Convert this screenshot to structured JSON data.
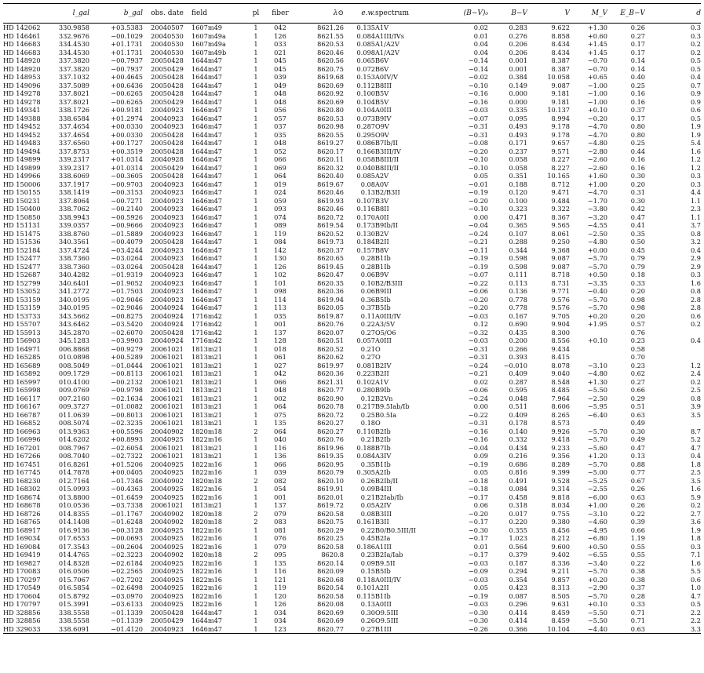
{
  "columns": [
    "",
    "l_gal",
    "b_gal",
    "obs. date",
    "field",
    "pl",
    "fiber",
    "λ⊙",
    "e.w.",
    "spectrum",
    "(B−V)₀",
    "B−V",
    "V",
    "M_V",
    "E_B−V",
    "d"
  ],
  "rows": [
    [
      "HD 142062",
      "330.9858",
      "+03.5383",
      "20040507",
      "1607m49",
      "1",
      "042",
      "8621.26",
      "0.135",
      "A1V",
      "0.02",
      "0.283",
      "9.622",
      "+1.30",
      "0.26",
      "0.3"
    ],
    [
      "HD 146461",
      "332.9676",
      "−00.1029",
      "20040530",
      "1607m49a",
      "1",
      "126",
      "8621.55",
      "0.084",
      "A1III/IVs",
      "0.01",
      "0.276",
      "8.858",
      "+0.60",
      "0.27",
      "0.3"
    ],
    [
      "HD 146683",
      "334.4530",
      "+01.1731",
      "20040530",
      "1607m49a",
      "1",
      "033",
      "8620.53",
      "0.085",
      "A1/A2V",
      "0.04",
      "0.206",
      "8.434",
      "+1.45",
      "0.17",
      "0.2"
    ],
    [
      "HD 146683",
      "334.4530",
      "+01.1731",
      "20040530",
      "1607m49b",
      "1",
      "021",
      "8620.46",
      "0.098",
      "A1/A2V",
      "0.04",
      "0.206",
      "8.434",
      "+1.45",
      "0.17",
      "0.2"
    ],
    [
      "HD 148920",
      "337.3820",
      "−00.7937",
      "20050428",
      "1644m47",
      "1",
      "045",
      "8620.56",
      "0.065",
      "B6V",
      "−0.14",
      "0.001",
      "8.387",
      "−0.70",
      "0.14",
      "0.5"
    ],
    [
      "HD 148920",
      "337.3820",
      "−00.7937",
      "20050429",
      "1644m47",
      "1",
      "045",
      "8620.75",
      "0.072",
      "B6V",
      "−0.14",
      "0.001",
      "8.387",
      "−0.70",
      "0.14",
      "0.5"
    ],
    [
      "HD 148953",
      "337.1032",
      "+00.4645",
      "20050428",
      "1644m47",
      "1",
      "039",
      "8619.68",
      "0.153",
      "A0IV/V",
      "−0.02",
      "0.384",
      "10.058",
      "+0.65",
      "0.40",
      "0.4"
    ],
    [
      "HD 149096",
      "337.5089",
      "+00.6436",
      "20050428",
      "1644m47",
      "1",
      "049",
      "8620.69",
      "0.112",
      "B8III",
      "−0.10",
      "0.149",
      "9.087",
      "−1.00",
      "0.25",
      "0.7"
    ],
    [
      "HD 149278",
      "337.8021",
      "−00.6265",
      "20050428",
      "1644m47",
      "1",
      "048",
      "8620.92",
      "0.100",
      "B5V",
      "−0.16",
      "0.000",
      "9.181",
      "−1.00",
      "0.16",
      "0.9"
    ],
    [
      "HD 149278",
      "337.8021",
      "−00.6265",
      "20050429",
      "1644m47",
      "1",
      "048",
      "8620.69",
      "0.104",
      "B5V",
      "−0.16",
      "0.000",
      "9.181",
      "−1.00",
      "0.16",
      "0.9"
    ],
    [
      "HD 149341",
      "338.1726",
      "+00.9181",
      "20040923",
      "1646m47",
      "1",
      "056",
      "8620.80",
      "0.104",
      "A0III",
      "−0.03",
      "0.335",
      "10.137",
      "+0.10",
      "0.37",
      "0.6"
    ],
    [
      "HD 149388",
      "338.6584",
      "+01.2974",
      "20040923",
      "1646m47",
      "1",
      "057",
      "8620.53",
      "0.073",
      "B9IV",
      "−0.07",
      "0.095",
      "8.994",
      "−0.20",
      "0.17",
      "0.5"
    ],
    [
      "HD 149452",
      "337.4654",
      "+00.0330",
      "20040923",
      "1646m47",
      "1",
      "037",
      "8620.98",
      "0.287",
      "O9V",
      "−0.31",
      "0.493",
      "9.178",
      "−4.70",
      "0.80",
      "1.9"
    ],
    [
      "HD 149452",
      "337.4654",
      "+00.0330",
      "20050428",
      "1644m47",
      "1",
      "035",
      "8620.55",
      "0.295",
      "O9V",
      "−0.31",
      "0.493",
      "9.178",
      "−4.70",
      "0.80",
      "1.9"
    ],
    [
      "HD 149483",
      "337.6560",
      "+00.1727",
      "20050428",
      "1644m47",
      "1",
      "048",
      "8619.27",
      "0.086",
      "B7Ib/II",
      "−0.08",
      "0.171",
      "9.657",
      "−4.80",
      "0.25",
      "5.4"
    ],
    [
      "HD 149494",
      "337.8753",
      "+00.3519",
      "20050428",
      "1644m47",
      "1",
      "052",
      "8620.17",
      "0.166",
      "B3III/IV",
      "−0.20",
      "0.237",
      "9.571",
      "−2.80",
      "0.44",
      "1.6"
    ],
    [
      "HD 149899",
      "339.2317",
      "+01.0314",
      "20040928",
      "1646m47",
      "1",
      "066",
      "8620.11",
      "0.058",
      "B8III/II",
      "−0.10",
      "0.058",
      "8.227",
      "−2.60",
      "0.16",
      "1.2"
    ],
    [
      "HD 149899",
      "339.2317",
      "+01.0314",
      "20050429",
      "1644m47",
      "1",
      "069",
      "8620.32",
      "0.040",
      "B8III/II",
      "−0.10",
      "0.058",
      "8.227",
      "−2.60",
      "0.16",
      "1.2"
    ],
    [
      "HD 149966",
      "338.6069",
      "−00.3605",
      "20050428",
      "1644m47",
      "1",
      "064",
      "8620.40",
      "0.085",
      "A2V",
      "0.05",
      "0.351",
      "10.165",
      "+1.60",
      "0.30",
      "0.3"
    ],
    [
      "HD 150006",
      "337.1917",
      "−00.9703",
      "20040923",
      "1646m47",
      "1",
      "019",
      "8619.67",
      "0.08",
      "A0V",
      "−0.01",
      "0.188",
      "8.712",
      "+1.00",
      "0.20",
      "0.3"
    ],
    [
      "HD 150155",
      "338.1419",
      "−00.3153",
      "20040923",
      "1646m47",
      "1",
      "024",
      "8620.46",
      "0.13",
      "B2/B3II",
      "−0.19",
      "0.120",
      "9.471",
      "−4.70",
      "0.31",
      "4.4"
    ],
    [
      "HD 150231",
      "337.8064",
      "−00.7271",
      "20040923",
      "1646m47",
      "1",
      "059",
      "8619.93",
      "0.107",
      "B3V",
      "−0.20",
      "0.100",
      "9.484",
      "−1.70",
      "0.30",
      "1.1"
    ],
    [
      "HD 150400",
      "338.7062",
      "−00.2140",
      "20040923",
      "1646m47",
      "1",
      "093",
      "8620.46",
      "0.116",
      "B8II",
      "−0.10",
      "0.323",
      "9.322",
      "−3.80",
      "0.42",
      "2.3"
    ],
    [
      "HD 150850",
      "338.9943",
      "−00.5926",
      "20040923",
      "1646m47",
      "1",
      "074",
      "8620.72",
      "0.170",
      "A0II",
      "0.00",
      "0.471",
      "8.367",
      "−3.20",
      "0.47",
      "1.1"
    ],
    [
      "HD 151131",
      "339.0357",
      "−00.9666",
      "20040923",
      "1646m47",
      "1",
      "089",
      "8619.54",
      "0.173",
      "B9Ib/II",
      "−0.04",
      "0.365",
      "9.565",
      "−4.55",
      "0.41",
      "3.7"
    ],
    [
      "HD 151475",
      "338.8760",
      "−01.5889",
      "20040923",
      "1646m47",
      "1",
      "119",
      "8620.52",
      "0.130",
      "B2V",
      "−0.24",
      "0.107",
      "8.061",
      "−2.50",
      "0.35",
      "0.8"
    ],
    [
      "HD 151536",
      "340.3561",
      "−00.4079",
      "20050428",
      "1644m47",
      "1",
      "084",
      "8619.73",
      "0.184",
      "B2II",
      "−0.21",
      "0.288",
      "9.250",
      "−4.80",
      "0.50",
      "3.2"
    ],
    [
      "HD 152184",
      "337.4724",
      "−03.4244",
      "20040923",
      "1646m47",
      "1",
      "142",
      "8620.37",
      "0.157",
      "B8V",
      "−0.11",
      "0.344",
      "9.368",
      "+0.00",
      "0.45",
      "0.4"
    ],
    [
      "HD 152477",
      "338.7360",
      "−03.0264",
      "20040923",
      "1646m47",
      "1",
      "130",
      "8620.65",
      "0.28",
      "B1Ib",
      "−0.19",
      "0.598",
      "9.087",
      "−5.70",
      "0.79",
      "2.9"
    ],
    [
      "HD 152477",
      "338.7360",
      "−03.0264",
      "20050428",
      "1644m47",
      "1",
      "126",
      "8619.45",
      "0.28",
      "B1Ib",
      "−0.19",
      "0.598",
      "9.087",
      "−5.70",
      "0.79",
      "2.9"
    ],
    [
      "HD 152687",
      "340.4282",
      "−01.9319",
      "20040923",
      "1646m47",
      "1",
      "102",
      "8620.47",
      "0.06",
      "B9V",
      "−0.07",
      "0.111",
      "8.718",
      "+0.50",
      "0.18",
      "0.3"
    ],
    [
      "HD 152799",
      "340.6401",
      "−01.9052",
      "20040923",
      "1646m47",
      "1",
      "101",
      "8620.35",
      "0.10",
      "B2/B3III",
      "−0.22",
      "0.113",
      "8.731",
      "−3.35",
      "0.33",
      "1.6"
    ],
    [
      "HD 153052",
      "341.2772",
      "−01.7503",
      "20040923",
      "1646m47",
      "1",
      "098",
      "8620.36",
      "0.06",
      "B9III",
      "−0.06",
      "0.136",
      "9.771",
      "−0.40",
      "0.20",
      "0.8"
    ],
    [
      "HD 153159",
      "340.0195",
      "−02.9046",
      "20040923",
      "1646m47",
      "1",
      "114",
      "8619.94",
      "0.36",
      "B5Ib",
      "−0.20",
      "0.778",
      "9.576",
      "−5.70",
      "0.98",
      "2.8"
    ],
    [
      "HD 153159",
      "340.0195",
      "−02.9046",
      "20040924",
      "1646m47",
      "1",
      "113",
      "8620.05",
      "0.37",
      "B5Ib",
      "−0.20",
      "0.778",
      "9.576",
      "−5.70",
      "0.98",
      "2.8"
    ],
    [
      "HD 153733",
      "343.5662",
      "−00.8275",
      "20040924",
      "1716m42",
      "1",
      "035",
      "8619.87",
      "0.11",
      "A0III/IV",
      "−0.03",
      "0.167",
      "9.705",
      "+0.20",
      "0.20",
      "0.6"
    ],
    [
      "HD 155707",
      "343.6462",
      "−03.5420",
      "20040924",
      "1716m42",
      "1",
      "001",
      "8620.76",
      "0.22",
      "A3/5V",
      "0.12",
      "0.690",
      "9.904",
      "+1.95",
      "0.57",
      "0.2"
    ],
    [
      "HD 155913",
      "345.2870",
      "−02.6070",
      "20050428",
      "1716m42",
      "1",
      "137",
      "8620.07",
      "0.27",
      "O5/O6",
      "−0.32",
      "0.435",
      "8.300",
      "",
      "0.76",
      ""
    ],
    [
      "HD 156903",
      "345.1283",
      "−03.9903",
      "20040924",
      "1716m42",
      "1",
      "128",
      "8620.51",
      "0.057",
      "A0III",
      "−0.03",
      "0.200",
      "8.556",
      "+0.10",
      "0.23",
      "0.4"
    ],
    [
      "HD 164971",
      "006.8868",
      "−00.9279",
      "20061021",
      "1813m21",
      "1",
      "018",
      "8620.52",
      "0.21",
      "O",
      "−0.31",
      "0.266",
      "9.434",
      "",
      "0.58",
      ""
    ],
    [
      "HD 165285",
      "010.0898",
      "+00.5289",
      "20061021",
      "1813m21",
      "1",
      "061",
      "8620.62",
      "0.27",
      "O",
      "−0.31",
      "0.393",
      "8.415",
      "",
      "0.70",
      ""
    ],
    [
      "HD 165689",
      "008.5049",
      "−01.0444",
      "20061021",
      "1813m21",
      "1",
      "027",
      "8619.97",
      "0.081",
      "B2IV",
      "−0.24",
      "−0.010",
      "8.078",
      "−3.10",
      "0.23",
      "1.2"
    ],
    [
      "HD 165892",
      "009.1729",
      "−00.8113",
      "20061021",
      "1813m21",
      "1",
      "042",
      "8620.36",
      "0.223",
      "B2II",
      "−0.21",
      "0.409",
      "9.040",
      "−4.80",
      "0.62",
      "2.4"
    ],
    [
      "HD 165997",
      "010.4100",
      "−00.2132",
      "20061021",
      "1813m21",
      "1",
      "066",
      "8621.31",
      "0.102",
      "A1V",
      "0.02",
      "0.287",
      "8.548",
      "+1.30",
      "0.27",
      "0.2"
    ],
    [
      "HD 165998",
      "009.0769",
      "−00.9798",
      "20061021",
      "1813m21",
      "1",
      "048",
      "8620.77",
      "0.280",
      "B9Ib",
      "−0.06",
      "0.595",
      "8.485",
      "−5.50",
      "0.66",
      "2.5"
    ],
    [
      "HD 166117",
      "007.2160",
      "−02.1634",
      "20061021",
      "1813m21",
      "1",
      "002",
      "8620.90",
      "0.12",
      "B2Vn",
      "−0.24",
      "0.048",
      "7.964",
      "−2.50",
      "0.29",
      "0.8"
    ],
    [
      "HD 166167",
      "009.3727",
      "−01.0082",
      "20061021",
      "1813m21",
      "1",
      "064",
      "8620.78",
      "0.217",
      "B9.5Iab/Ib",
      "0.00",
      "0.511",
      "8.606",
      "−5.95",
      "0.51",
      "3.9"
    ],
    [
      "HD 166787",
      "011.0639",
      "−00.8013",
      "20061021",
      "1813m21",
      "1",
      "075",
      "8620.72",
      "0.25",
      "B0.5Ia",
      "−0.22",
      "0.409",
      "8.265",
      "−6.40",
      "0.63",
      "3.5"
    ],
    [
      "HD 166852",
      "008.5074",
      "−02.3235",
      "20061021",
      "1813m21",
      "1",
      "135",
      "8620.27",
      "0.18",
      "O",
      "−0.31",
      "0.178",
      "8.573",
      "",
      "0.49",
      ""
    ],
    [
      "HD 166963",
      "013.9363",
      "+00.5596",
      "20040902",
      "1820m18",
      "2",
      "064",
      "8620.27",
      "0.110",
      "B2Ib",
      "−0.16",
      "0.140",
      "9.926",
      "−5.70",
      "0.30",
      "8.7"
    ],
    [
      "HD 166996",
      "014.6202",
      "+00.8993",
      "20040925",
      "1822m16",
      "1",
      "040",
      "8620.76",
      "0.21",
      "B2Ib",
      "−0.16",
      "0.332",
      "9.418",
      "−5.70",
      "0.49",
      "5.2"
    ],
    [
      "HD 167201",
      "008.7967",
      "−02.6054",
      "20061021",
      "1813m21",
      "1",
      "116",
      "8619.96",
      "0.188",
      "B7Ib",
      "−0.04",
      "0.434",
      "9.233",
      "−5.60",
      "0.47",
      "4.7"
    ],
    [
      "HD 167266",
      "008.7040",
      "−02.7322",
      "20061021",
      "1813m21",
      "1",
      "136",
      "8619.35",
      "0.084",
      "A3IV",
      "0.09",
      "0.216",
      "9.356",
      "+1.20",
      "0.13",
      "0.4"
    ],
    [
      "HD 167451",
      "016.8261",
      "+01.5206",
      "20040925",
      "1822m16",
      "1",
      "066",
      "8620.95",
      "0.35",
      "B1Ib",
      "−0.19",
      "0.686",
      "8.289",
      "−5.70",
      "0.88",
      "1.8"
    ],
    [
      "HD 167745",
      "014.7878",
      "+00.0405",
      "20040925",
      "1822m16",
      "1",
      "039",
      "8620.79",
      "0.305",
      "A2Ib",
      "0.05",
      "0.816",
      "9.399",
      "−5.00",
      "0.77",
      "2.5"
    ],
    [
      "HD 168230",
      "012.7164",
      "−01.7346",
      "20040902",
      "1820m18",
      "2",
      "082",
      "8620.10",
      "0.26",
      "B2Ib/II",
      "−0.18",
      "0.491",
      "9.528",
      "−5.25",
      "0.67",
      "3.5"
    ],
    [
      "HD 168302",
      "015.0993",
      "−00.4363",
      "20040925",
      "1822m16",
      "1",
      "054",
      "8619.91",
      "0.09",
      "B4III",
      "−0.18",
      "0.084",
      "9.314",
      "−2.55",
      "0.26",
      "1.6"
    ],
    [
      "HD 168674",
      "013.8800",
      "−01.6459",
      "20040925",
      "1822m16",
      "1",
      "001",
      "8620.01",
      "0.21",
      "B2Iab/Ib",
      "−0.17",
      "0.458",
      "9.818",
      "−6.00",
      "0.63",
      "5.9"
    ],
    [
      "HD 168678",
      "010.0536",
      "−03.7338",
      "20061021",
      "1813m21",
      "1",
      "137",
      "8619.72",
      "0.05",
      "A2IV",
      "0.06",
      "0.318",
      "8.034",
      "+1.00",
      "0.26",
      "0.2"
    ],
    [
      "HD 168726",
      "014.8355",
      "−01.1767",
      "20040902",
      "1820m18",
      "2",
      "079",
      "8620.58",
      "0.08",
      "B3III",
      "−0.20",
      "0.017",
      "9.755",
      "−3.10",
      "0.22",
      "2.7"
    ],
    [
      "HD 168765",
      "014.1408",
      "−01.6248",
      "20040902",
      "1820m18",
      "2",
      "083",
      "8620.75",
      "0.161",
      "B3II",
      "−0.17",
      "0.220",
      "9.380",
      "−4.60",
      "0.39",
      "3.6"
    ],
    [
      "HD 168917",
      "016.9136",
      "−00.3128",
      "20040925",
      "1822m16",
      "1",
      "081",
      "8620.29",
      "0.22",
      "B0/B0.5III/II",
      "−0.30",
      "0.355",
      "8.456",
      "−4.95",
      "0.66",
      "1.9"
    ],
    [
      "HD 169034",
      "017.6553",
      "−00.0693",
      "20040925",
      "1822m16",
      "1",
      "076",
      "8620.25",
      "0.45",
      "B2Ia",
      "−0.17",
      "1.023",
      "8.212",
      "−6.80",
      "1.19",
      "1.8"
    ],
    [
      "HD 169084",
      "017.3543",
      "−00.2604",
      "20040925",
      "1822m16",
      "1",
      "079",
      "8620.58",
      "0.186",
      "A1III",
      "0.01",
      "0.564",
      "9.600",
      "+0.50",
      "0.55",
      "0.3"
    ],
    [
      "HD 169419",
      "014.4765",
      "−02.3223",
      "20040902",
      "1820m18",
      "2",
      "095",
      "8620.8",
      "0.23",
      "B2Ia/Iab",
      "−0.17",
      "0.379",
      "9.402",
      "−6.55",
      "0.55",
      "7.1"
    ],
    [
      "HD 169827",
      "014.8328",
      "−02.6184",
      "20040925",
      "1822m16",
      "1",
      "135",
      "8620.14",
      "0.09",
      "B9.5II",
      "−0.03",
      "0.187",
      "8.336",
      "−3.40",
      "0.22",
      "1.6"
    ],
    [
      "HD 170083",
      "016.0506",
      "−02.2565",
      "20040925",
      "1822m16",
      "1",
      "116",
      "8620.09",
      "0.15",
      "B5Ib",
      "−0.09",
      "0.294",
      "9.211",
      "−5.70",
      "0.38",
      "5.5"
    ],
    [
      "HD 170297",
      "015.7067",
      "−02.7202",
      "20040925",
      "1822m16",
      "1",
      "121",
      "8620.68",
      "0.118",
      "A0III/IV",
      "−0.03",
      "0.354",
      "9.857",
      "+0.20",
      "0.38",
      "0.6"
    ],
    [
      "HD 170549",
      "016.5854",
      "−02.6498",
      "20040925",
      "1822m16",
      "1",
      "119",
      "8620.54",
      "0.101",
      "A2II",
      "0.05",
      "0.423",
      "8.313",
      "−2.90",
      "0.37",
      "1.0"
    ],
    [
      "HD 170604",
      "015.8792",
      "−03.0970",
      "20040925",
      "1822m16",
      "1",
      "120",
      "8620.58",
      "0.115",
      "B1Ib",
      "−0.19",
      "0.087",
      "8.505",
      "−5.70",
      "0.28",
      "4.7"
    ],
    [
      "HD 170797",
      "015.3991",
      "−03.6133",
      "20040925",
      "1822m16",
      "1",
      "126",
      "8620.08",
      "0.13",
      "A0III",
      "−0.03",
      "0.296",
      "9.631",
      "+0.10",
      "0.33",
      "0.5"
    ],
    [
      "HD 328856",
      "338.5558",
      "−01.1339",
      "20050428",
      "1644m47",
      "1",
      "034",
      "8620.69",
      "0.30",
      "O9.5III",
      "−0.30",
      "0.414",
      "8.459",
      "−5.50",
      "0.71",
      "2.2"
    ],
    [
      "HD 328856",
      "338.5558",
      "−01.1339",
      "20050429",
      "1644m47",
      "1",
      "034",
      "8620.69",
      "0.26",
      "O9.5III",
      "−0.30",
      "0.414",
      "8.459",
      "−5.50",
      "0.71",
      "2.2"
    ],
    [
      "HD 329033",
      "338.6091",
      "−01.4120",
      "20040923",
      "1646m47",
      "1",
      "123",
      "8620.77",
      "0.27",
      "B1III",
      "−0.26",
      "0.366",
      "10.104",
      "−4.40",
      "0.63",
      "3.3"
    ]
  ]
}
